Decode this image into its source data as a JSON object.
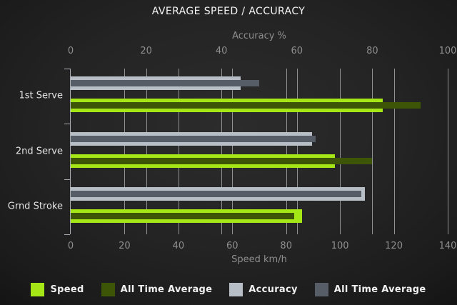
{
  "title": "AVERAGE SPEED / ACCURACY",
  "top_axis": {
    "label": "Accuracy %",
    "ticks": [
      0,
      20,
      40,
      60,
      80,
      100
    ],
    "max": 100
  },
  "bottom_axis": {
    "label": "Speed km/h",
    "ticks": [
      0,
      20,
      40,
      60,
      80,
      100,
      120,
      140
    ],
    "max": 140
  },
  "legend": [
    {
      "label": "Speed",
      "color": "#a4e616",
      "key": "speed"
    },
    {
      "label": "All Time Average",
      "color": "#3c5507",
      "key": "speed-alltime"
    },
    {
      "label": "Accuracy",
      "color": "#b8bec6",
      "key": "accuracy"
    },
    {
      "label": "All Time Average",
      "color": "#565d66",
      "key": "accuracy-alltime"
    }
  ],
  "chart_data": {
    "type": "bar",
    "orientation": "horizontal",
    "title": "AVERAGE SPEED / ACCURACY",
    "categories": [
      "1st Serve",
      "2nd Serve",
      "Grnd Stroke"
    ],
    "series": [
      {
        "name": "Speed",
        "axis": "speed",
        "color": "#a4e616",
        "values": [
          116,
          98,
          86
        ]
      },
      {
        "name": "All Time Average",
        "axis": "speed",
        "color": "#3c5507",
        "values": [
          130,
          112,
          83
        ]
      },
      {
        "name": "Accuracy",
        "axis": "accuracy",
        "color": "#b8bec6",
        "values": [
          45,
          64,
          78
        ]
      },
      {
        "name": "All Time Average",
        "axis": "accuracy",
        "color": "#565d66",
        "values": [
          50,
          65,
          77
        ]
      }
    ],
    "top_axis_label": "Accuracy %",
    "bottom_axis_label": "Speed km/h",
    "accuracy_range": [
      0,
      100
    ],
    "speed_range": [
      0,
      140
    ],
    "grid": true,
    "legend_position": "bottom"
  },
  "colors": {
    "background_center": "#2c2c2c",
    "background_edge": "#141414",
    "gridline": "#8f9396",
    "axis_text": "#8e8e8e",
    "category_text": "#e3e3e3",
    "title_text": "#f4f4f4"
  }
}
